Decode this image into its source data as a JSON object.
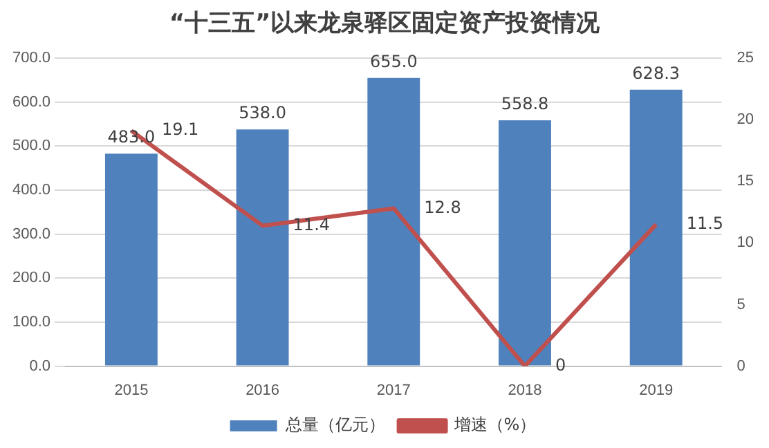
{
  "chart_data": {
    "type": "bar",
    "title": "“十三五”以来龙泉驿区固定资产投资情况",
    "categories": [
      "2015",
      "2016",
      "2017",
      "2018",
      "2019"
    ],
    "series": [
      {
        "name": "总量（亿元）",
        "color": "#4f81bd",
        "values": [
          483.0,
          538.0,
          655.0,
          558.8,
          628.3
        ],
        "value_labels": [
          "483.0",
          "538.0",
          "655.0",
          "558.8",
          "628.3"
        ]
      },
      {
        "name": "增速（%）",
        "type": "line",
        "axis": "y2",
        "color": "#c0504d",
        "values": [
          19.1,
          11.4,
          12.8,
          0,
          11.5
        ],
        "value_labels": [
          "19.1",
          "11.4",
          "12.8",
          "0",
          "11.5"
        ]
      }
    ],
    "ylim": [
      0,
      700
    ],
    "yticks": [
      {
        "value": 0,
        "label": "0.0"
      },
      {
        "value": 100,
        "label": "100.0"
      },
      {
        "value": 200,
        "label": "200.0"
      },
      {
        "value": 300,
        "label": "300.0"
      },
      {
        "value": 400,
        "label": "400.0"
      },
      {
        "value": 500,
        "label": "500.0"
      },
      {
        "value": 600,
        "label": "600.0"
      },
      {
        "value": 700,
        "label": "700.0"
      }
    ],
    "y2lim": [
      0,
      25
    ],
    "y2ticks": [
      0,
      5,
      10,
      15,
      20,
      25
    ],
    "grid": "y",
    "legend": "bottom",
    "marker": "none",
    "line_style": "solid"
  }
}
